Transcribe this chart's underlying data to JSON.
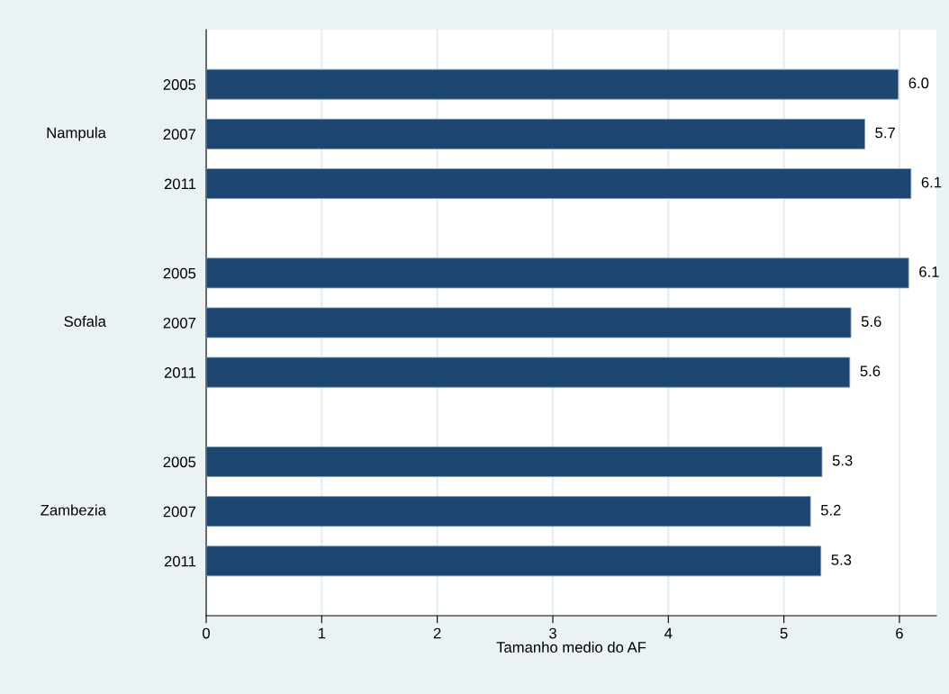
{
  "chart_data": {
    "type": "bar",
    "orientation": "horizontal",
    "xlabel": "Tamanho medio do AF",
    "categories": [
      "2005",
      "2007",
      "2011",
      "2005",
      "2007",
      "2011",
      "2005",
      "2007",
      "2011"
    ],
    "values": [
      5.99,
      5.7,
      6.1,
      6.08,
      5.58,
      5.57,
      5.33,
      5.23,
      5.32
    ],
    "value_labels": [
      "6.0",
      "5.7",
      "6.1",
      "6.1",
      "5.6",
      "5.6",
      "5.3",
      "5.2",
      "5.3"
    ],
    "color": "#1c4670",
    "annotations": [
      "Nampula",
      "Sofala",
      "Zambezia"
    ],
    "xlim": [
      0,
      6.32
    ],
    "xticks": [
      0,
      1,
      2,
      3,
      4,
      5,
      6
    ],
    "grid": "x"
  }
}
